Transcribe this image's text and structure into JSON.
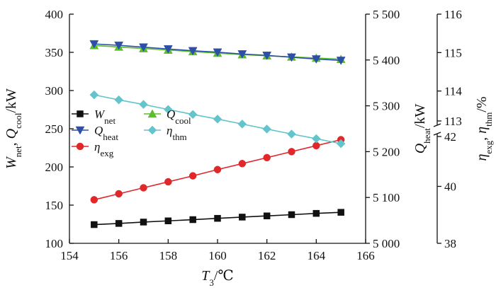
{
  "chart_data": {
    "type": "line",
    "grid": false,
    "legend_position": "middle-left",
    "x": [
      155,
      156,
      157,
      158,
      159,
      160,
      161,
      162,
      163,
      164,
      165
    ],
    "x_axis": {
      "label_main": "T",
      "label_sub": "3",
      "label_unit": "/℃",
      "range": [
        154,
        166
      ],
      "ticks": [
        "154",
        "156",
        "158",
        "160",
        "162",
        "164",
        "166"
      ]
    },
    "y_left": {
      "label_parts": [
        {
          "text": "W",
          "italic": true
        },
        {
          "text": "net",
          "sub": true
        },
        {
          "text": ", "
        },
        {
          "text": "Q",
          "italic": true
        },
        {
          "text": "cool",
          "sub": true
        },
        {
          "text": "/kW"
        }
      ],
      "range": [
        100,
        400
      ],
      "ticks": [
        "100",
        "150",
        "200",
        "250",
        "300",
        "350",
        "400"
      ]
    },
    "y_right1": {
      "label_parts": [
        {
          "text": "Q",
          "italic": true
        },
        {
          "text": "heat",
          "sub": true
        },
        {
          "text": "/kW"
        }
      ],
      "range": [
        5000,
        5500
      ],
      "ticks": [
        "5 000",
        "5 100",
        "5 200",
        "5 300",
        "5 400",
        "5 500"
      ]
    },
    "y_right2": {
      "label_parts": [
        {
          "text": "η",
          "italic": true
        },
        {
          "text": "exg",
          "sub": true
        },
        {
          "text": ", "
        },
        {
          "text": "η",
          "italic": true
        },
        {
          "text": "thm",
          "sub": true
        },
        {
          "text": "/%"
        }
      ],
      "broken": true,
      "lower_range": [
        38,
        42
      ],
      "upper_range": [
        113,
        116
      ],
      "lower_ticks": [
        "38",
        "40",
        "42"
      ],
      "upper_ticks": [
        "113",
        "114",
        "115",
        "116"
      ]
    },
    "series": [
      {
        "name": "W",
        "name_sub": "net",
        "axis": "left",
        "color": "#111111",
        "marker": "square",
        "values": [
          124.5,
          126,
          127.8,
          129.4,
          131,
          132.7,
          134.3,
          135.9,
          137.5,
          139.2,
          140.6
        ]
      },
      {
        "name": "Q",
        "name_sub": "cool",
        "axis": "left",
        "color": "#5bbd2a",
        "marker": "triangle-up",
        "values": [
          359,
          357,
          355,
          353,
          351,
          349,
          347,
          345.5,
          344,
          342.5,
          341
        ]
      },
      {
        "name": "Q",
        "name_sub": "heat",
        "axis": "right1",
        "color": "#2e4fa8",
        "marker": "triangle-down",
        "values": [
          5435,
          5432,
          5428,
          5424,
          5420,
          5417,
          5413,
          5410,
          5406,
          5402,
          5399
        ]
      },
      {
        "name": "η",
        "name_sub": "exg",
        "axis": "right2",
        "color": "#e0282b",
        "marker": "circle",
        "values": [
          39.53,
          39.74,
          39.95,
          40.16,
          40.37,
          40.59,
          40.8,
          41.01,
          41.22,
          41.43,
          41.64
        ]
      },
      {
        "name": "η",
        "name_sub": "thm",
        "axis": "right2",
        "color": "#63c4cc",
        "marker": "diamond",
        "values": [
          113.9,
          113.77,
          113.65,
          113.52,
          113.39,
          113.27,
          113.14,
          113.01,
          112.88,
          112.76,
          112.63
        ]
      }
    ]
  }
}
